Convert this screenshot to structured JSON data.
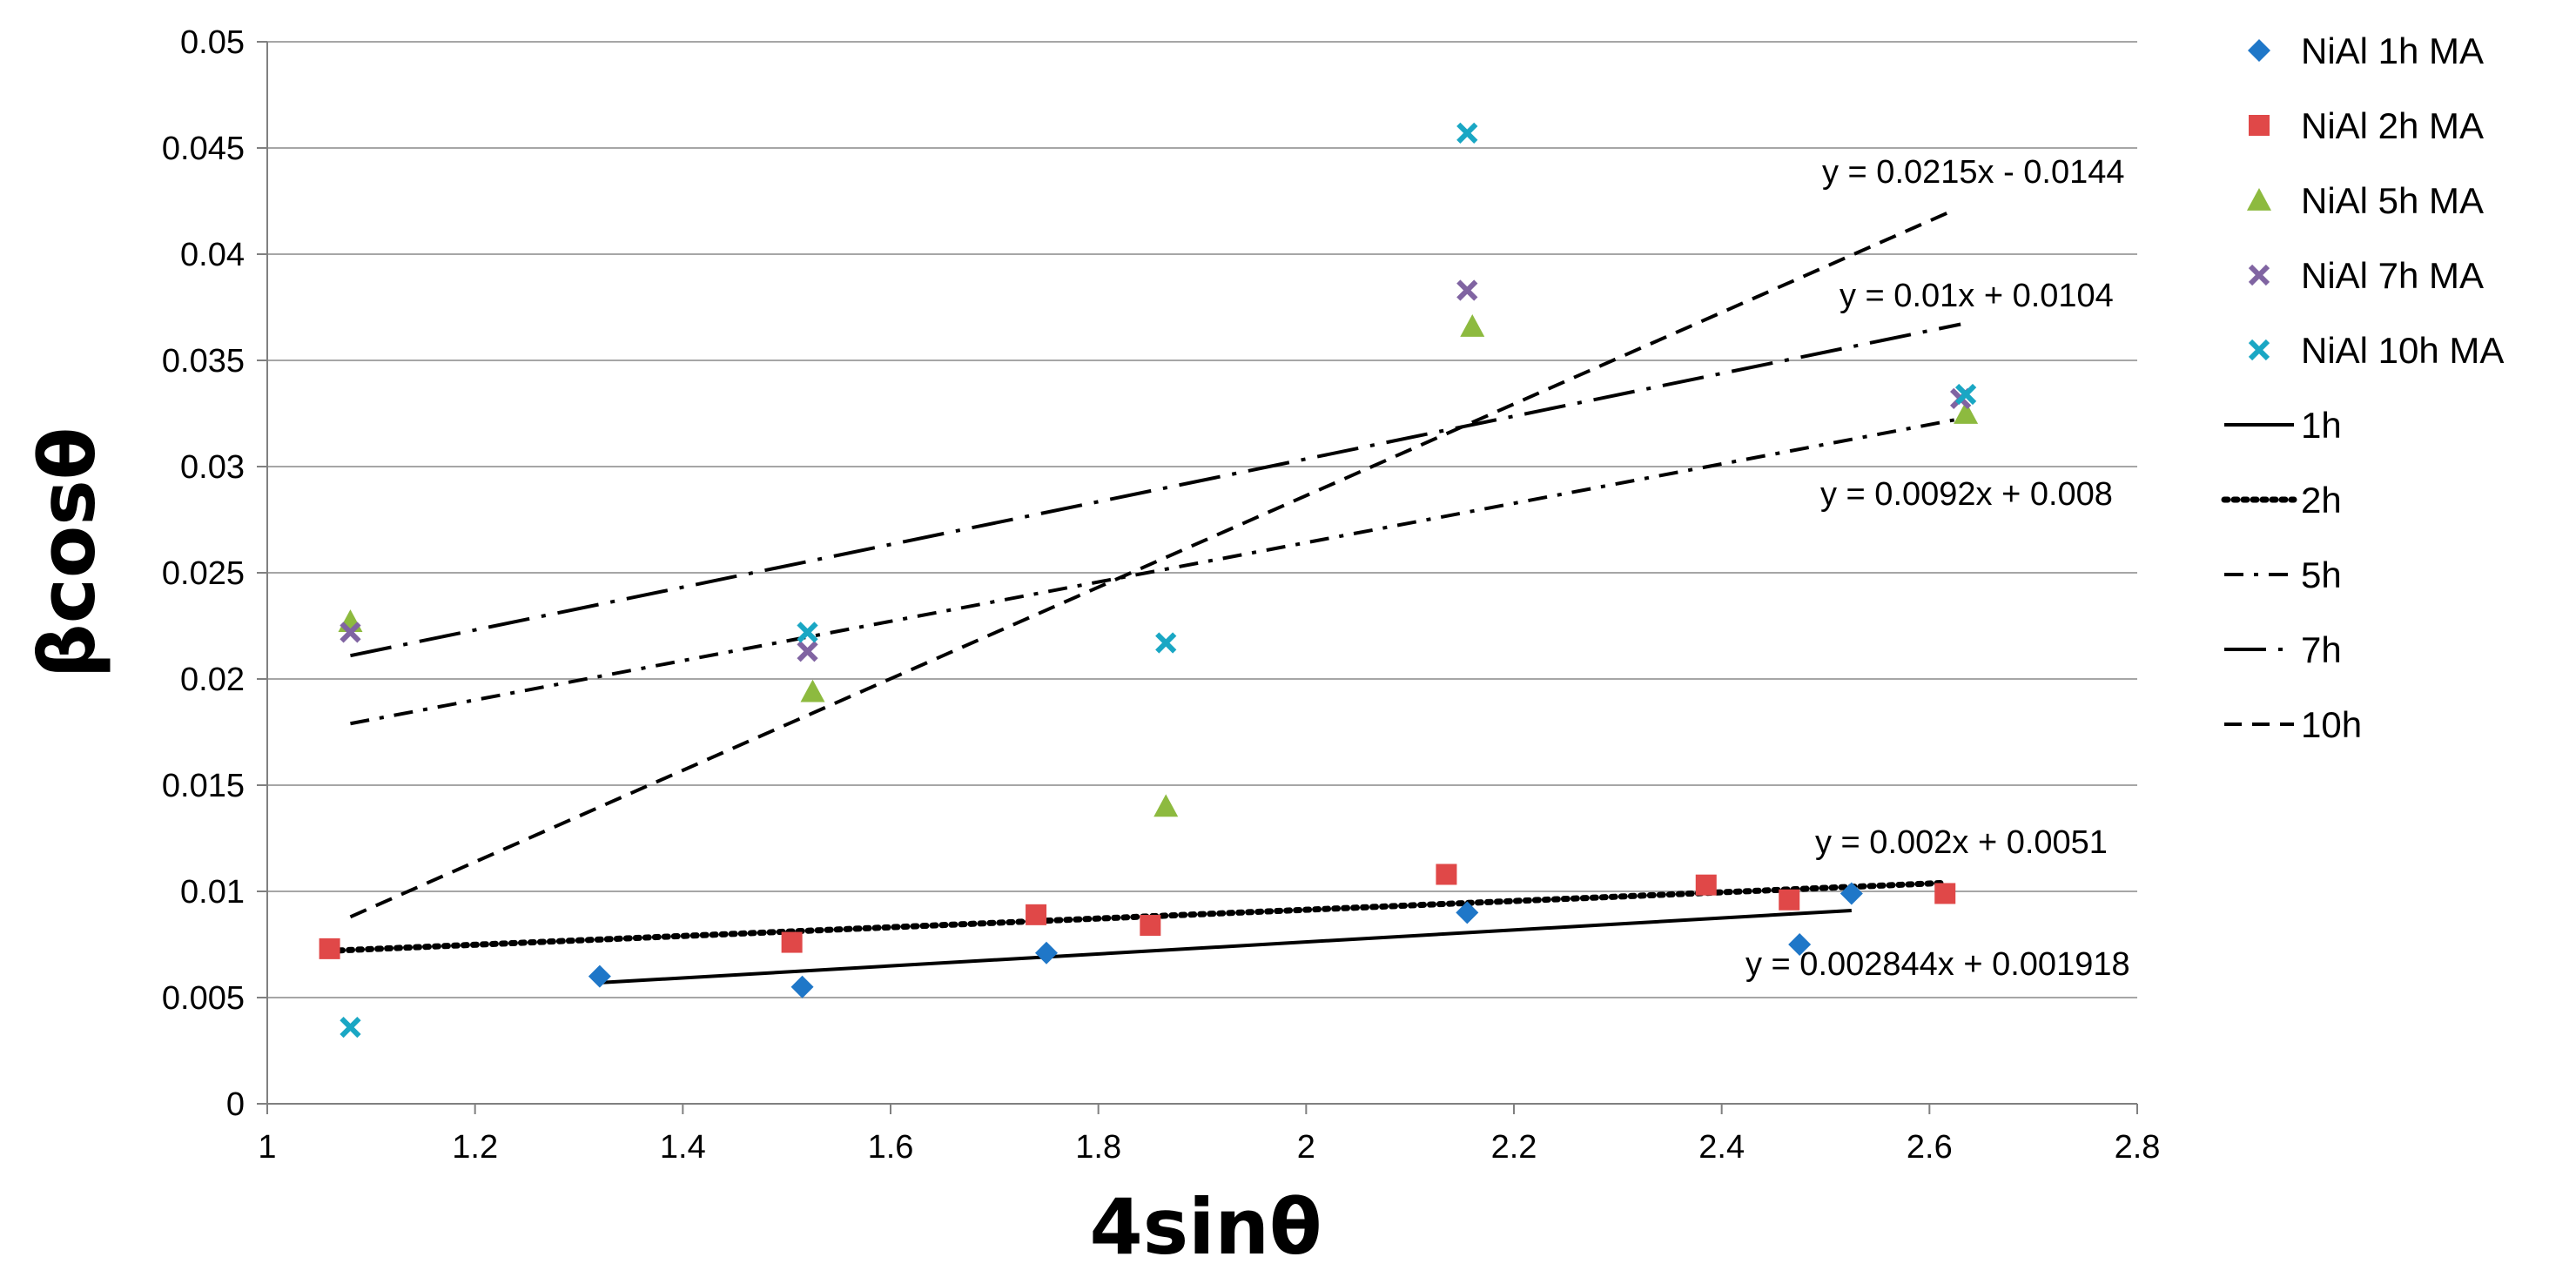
{
  "chart_data": {
    "type": "scatter",
    "title": "",
    "xlabel": "4sinθ",
    "ylabel": "βcosθ",
    "xlim": [
      1,
      2.8
    ],
    "ylim": [
      0,
      0.05
    ],
    "x_ticks": [
      1,
      1.2,
      1.4,
      1.6,
      1.8,
      2,
      2.2,
      2.4,
      2.6,
      2.8
    ],
    "x_tick_labels": [
      "1",
      "1.2",
      "1.4",
      "1.6",
      "1.8",
      "2",
      "2.2",
      "2.4",
      "2.6",
      "2.8"
    ],
    "y_ticks": [
      0,
      0.005,
      0.01,
      0.015,
      0.02,
      0.025,
      0.03,
      0.035,
      0.04,
      0.045,
      0.05
    ],
    "y_tick_labels": [
      "0",
      "0.005",
      "0.01",
      "0.015",
      "0.02",
      "0.025",
      "0.03",
      "0.035",
      "0.04",
      "0.045",
      "0.05"
    ],
    "grid": "horizontal",
    "legend_position": "right",
    "series": [
      {
        "name": "NiAl 1h MA",
        "marker": "diamond",
        "color": "#1F77C8",
        "x": [
          1.32,
          1.515,
          1.75,
          2.155,
          2.475,
          2.525
        ],
        "y": [
          0.006,
          0.0055,
          0.0071,
          0.009,
          0.0075,
          0.0099
        ]
      },
      {
        "name": "NiAl 2h MA",
        "marker": "square",
        "color": "#E04848",
        "x": [
          1.06,
          1.505,
          1.74,
          1.85,
          2.135,
          2.385,
          2.465,
          2.615
        ],
        "y": [
          0.0073,
          0.0076,
          0.0089,
          0.0084,
          0.0108,
          0.0103,
          0.0096,
          0.0099
        ]
      },
      {
        "name": "NiAl 5h MA",
        "marker": "triangle",
        "color": "#8DBA3F",
        "x": [
          1.08,
          1.525,
          1.865,
          2.16,
          2.635
        ],
        "y": [
          0.0227,
          0.0194,
          0.014,
          0.0366,
          0.0325
        ]
      },
      {
        "name": "NiAl 7h MA",
        "marker": "x",
        "color": "#8064A2",
        "x": [
          1.08,
          1.52,
          2.155,
          2.63
        ],
        "y": [
          0.0222,
          0.0213,
          0.0383,
          0.0332
        ]
      },
      {
        "name": "NiAl 10h MA",
        "marker": "x",
        "color": "#1AA7C4",
        "x": [
          1.08,
          1.52,
          1.865,
          2.155,
          2.635
        ],
        "y": [
          0.0036,
          0.0222,
          0.0217,
          0.0457,
          0.0334
        ]
      }
    ],
    "trendlines": [
      {
        "name": "1h",
        "dash": "solid",
        "x": [
          1.32,
          2.525
        ],
        "y": [
          0.0057,
          0.0091
        ],
        "equation": "y = 0.002844x + 0.001918"
      },
      {
        "name": "2h",
        "dash": "dotted",
        "x": [
          1.06,
          2.615
        ],
        "y": [
          0.0072,
          0.0104
        ],
        "equation": "y = 0.002x + 0.0051"
      },
      {
        "name": "5h",
        "dash": "dashdot",
        "x": [
          1.08,
          2.635
        ],
        "y": [
          0.0179,
          0.0323
        ],
        "equation": "y = 0.0092x + 0.008"
      },
      {
        "name": "7h",
        "dash": "longdashdot",
        "x": [
          1.08,
          2.63
        ],
        "y": [
          0.0211,
          0.0367
        ],
        "equation": "y = 0.01x + 0.0104"
      },
      {
        "name": "10h",
        "dash": "dashed",
        "x": [
          1.08,
          2.62
        ],
        "y": [
          0.0088,
          0.042
        ],
        "equation": "y = 0.0215x - 0.0144"
      }
    ]
  }
}
